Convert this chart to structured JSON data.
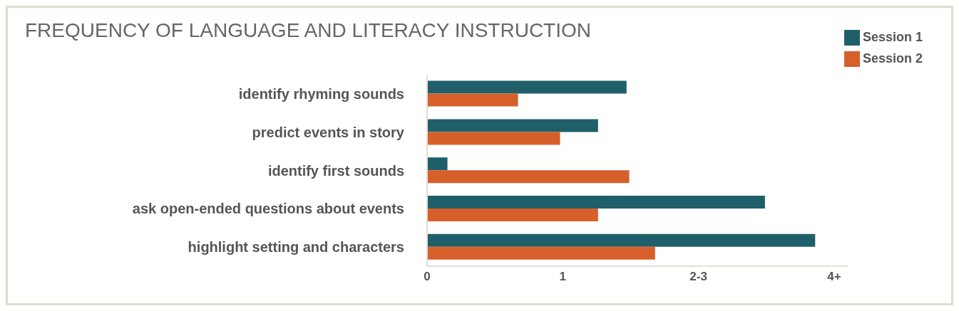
{
  "chart_data": {
    "type": "bar",
    "orientation": "horizontal",
    "title": "FREQUENCY OF LANGUAGE AND LITERACY INSTRUCTION",
    "categories": [
      "identify rhyming sounds",
      "predict events in story",
      "identify first sounds",
      "ask open-ended questions about events",
      "highlight setting and characters"
    ],
    "series": [
      {
        "name": "Session 1",
        "color": "#1f5f69",
        "values": [
          1.47,
          1.26,
          0.15,
          2.49,
          2.86
        ]
      },
      {
        "name": "Session 2",
        "color": "#d65f2a",
        "values": [
          0.67,
          0.98,
          1.49,
          1.26,
          1.68
        ]
      }
    ],
    "xlim": [
      0,
      3.1
    ],
    "xticks": [
      0,
      1,
      {
        "value": 2,
        "label": "2-3"
      },
      {
        "value": 3,
        "label": "4+"
      }
    ],
    "grid": false,
    "legend": "top right"
  }
}
